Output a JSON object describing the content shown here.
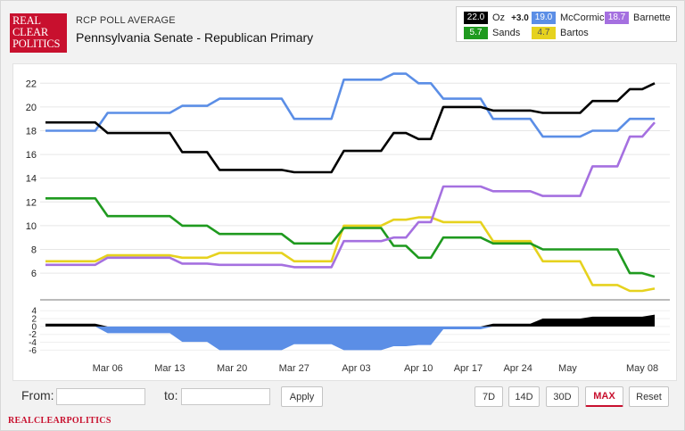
{
  "header": {
    "logo_lines": [
      "REAL",
      "CLEAR",
      "POLITICS"
    ],
    "kicker": "RCP POLL AVERAGE",
    "title": "Pennsylvania Senate - Republican Primary"
  },
  "legend": {
    "oz": {
      "value": "22.0",
      "name": "Oz",
      "spread": "+3.0",
      "color": "#000000"
    },
    "mccormick": {
      "value": "19.0",
      "name": "McCormick",
      "color": "#5b8ee6"
    },
    "barnette": {
      "value": "18.7",
      "name": "Barnette",
      "color": "#a570e0"
    },
    "sands": {
      "value": "5.7",
      "name": "Sands",
      "color": "#1f9a1f"
    },
    "bartos": {
      "value": "4.7",
      "name": "Bartos",
      "color": "#e6d21e"
    }
  },
  "controls": {
    "from_label": "From:",
    "to_label": "to:",
    "from_value": "",
    "to_value": "",
    "apply_label": "Apply",
    "ranges": [
      "7D",
      "14D",
      "30D",
      "MAX"
    ],
    "active_range": "MAX",
    "reset_label": "Reset"
  },
  "footer": {
    "brand": "REALCLEARPOLITICS"
  },
  "chart_data": {
    "type": "line",
    "title": "Pennsylvania Senate - Republican Primary",
    "xlabel": "",
    "ylabel": "",
    "x": [
      "Feb 28",
      "Mar 01",
      "Mar 03",
      "Mar 04",
      "Mar 05",
      "Mar 06",
      "Mar 08",
      "Mar 10",
      "Mar 12",
      "Mar 14",
      "Mar 15",
      "Mar 16",
      "Mar 17",
      "Mar 18",
      "Mar 19",
      "Mar 20",
      "Mar 22",
      "Mar 24",
      "Mar 26",
      "Mar 28",
      "Mar 29",
      "Mar 31",
      "Apr 02",
      "Apr 04",
      "Apr 05",
      "Apr 06",
      "Apr 07",
      "Apr 08",
      "Apr 09",
      "Apr 10",
      "Apr 11",
      "Apr 12",
      "Apr 13",
      "Apr 14",
      "Apr 16",
      "Apr 18",
      "Apr 20",
      "Apr 22",
      "Apr 24",
      "Apr 26",
      "Apr 28",
      "Apr 30",
      "May 02",
      "May 03",
      "May 04",
      "May 05",
      "May 06",
      "May 07",
      "May 08",
      "May 09"
    ],
    "ylim": [
      4.2,
      23.3
    ],
    "spread_ylim": [
      -7.5,
      4.5
    ],
    "x_ticks": [
      "Mar 06",
      "Mar 13",
      "Mar 20",
      "Mar 27",
      "Apr 03",
      "Apr 10",
      "Apr 17",
      "Apr 24",
      "May",
      "May 08"
    ],
    "y_ticks": [
      6,
      8,
      10,
      12,
      14,
      16,
      18,
      20,
      22
    ],
    "spread_ticks": [
      4,
      2,
      0,
      -2,
      -4,
      -6
    ],
    "series": [
      {
        "name": "Oz",
        "color": "#000000",
        "values": [
          18.7,
          18.7,
          18.7,
          18.7,
          18.7,
          17.8,
          17.8,
          17.8,
          17.8,
          17.8,
          17.8,
          16.2,
          16.2,
          16.2,
          14.7,
          14.7,
          14.7,
          14.7,
          14.7,
          14.7,
          14.5,
          14.5,
          14.5,
          14.5,
          16.3,
          16.3,
          16.3,
          16.3,
          17.8,
          17.8,
          17.3,
          17.3,
          20.0,
          20.0,
          20.0,
          20.0,
          19.7,
          19.7,
          19.7,
          19.7,
          19.5,
          19.5,
          19.5,
          19.5,
          20.5,
          20.5,
          20.5,
          21.5,
          21.5,
          22.0
        ]
      },
      {
        "name": "McCormick",
        "color": "#5b8ee6",
        "values": [
          18.0,
          18.0,
          18.0,
          18.0,
          18.0,
          19.5,
          19.5,
          19.5,
          19.5,
          19.5,
          19.5,
          20.1,
          20.1,
          20.1,
          20.7,
          20.7,
          20.7,
          20.7,
          20.7,
          20.7,
          19.0,
          19.0,
          19.0,
          19.0,
          22.3,
          22.3,
          22.3,
          22.3,
          22.8,
          22.8,
          22.0,
          22.0,
          20.7,
          20.7,
          20.7,
          20.7,
          19.0,
          19.0,
          19.0,
          19.0,
          17.5,
          17.5,
          17.5,
          17.5,
          18.0,
          18.0,
          18.0,
          19.0,
          19.0,
          19.0
        ]
      },
      {
        "name": "Barnette",
        "color": "#a570e0",
        "values": [
          6.7,
          6.7,
          6.7,
          6.7,
          6.7,
          7.3,
          7.3,
          7.3,
          7.3,
          7.3,
          7.3,
          6.8,
          6.8,
          6.8,
          6.7,
          6.7,
          6.7,
          6.7,
          6.7,
          6.7,
          6.5,
          6.5,
          6.5,
          6.5,
          8.7,
          8.7,
          8.7,
          8.7,
          9.0,
          9.0,
          10.3,
          10.3,
          13.3,
          13.3,
          13.3,
          13.3,
          12.9,
          12.9,
          12.9,
          12.9,
          12.5,
          12.5,
          12.5,
          12.5,
          15.0,
          15.0,
          15.0,
          17.5,
          17.5,
          18.7
        ]
      },
      {
        "name": "Sands",
        "color": "#1f9a1f",
        "values": [
          12.3,
          12.3,
          12.3,
          12.3,
          12.3,
          10.8,
          10.8,
          10.8,
          10.8,
          10.8,
          10.8,
          10.0,
          10.0,
          10.0,
          9.3,
          9.3,
          9.3,
          9.3,
          9.3,
          9.3,
          8.5,
          8.5,
          8.5,
          8.5,
          9.8,
          9.8,
          9.8,
          9.8,
          8.3,
          8.3,
          7.3,
          7.3,
          9.0,
          9.0,
          9.0,
          9.0,
          8.5,
          8.5,
          8.5,
          8.5,
          8.0,
          8.0,
          8.0,
          8.0,
          8.0,
          8.0,
          8.0,
          6.0,
          6.0,
          5.7
        ]
      },
      {
        "name": "Bartos",
        "color": "#e6d21e",
        "values": [
          7.0,
          7.0,
          7.0,
          7.0,
          7.0,
          7.5,
          7.5,
          7.5,
          7.5,
          7.5,
          7.5,
          7.3,
          7.3,
          7.3,
          7.7,
          7.7,
          7.7,
          7.7,
          7.7,
          7.7,
          7.0,
          7.0,
          7.0,
          7.0,
          10.0,
          10.0,
          10.0,
          10.0,
          10.5,
          10.5,
          10.7,
          10.7,
          10.3,
          10.3,
          10.3,
          10.3,
          8.7,
          8.7,
          8.7,
          8.7,
          7.0,
          7.0,
          7.0,
          7.0,
          5.0,
          5.0,
          5.0,
          4.5,
          4.5,
          4.7
        ]
      }
    ],
    "spread": {
      "name": "Oz vs McCormick spread",
      "positive_color": "#000000",
      "negative_color": "#5b8ee6",
      "values": [
        0.7,
        0.7,
        0.7,
        0.7,
        0.7,
        -1.7,
        -1.7,
        -1.7,
        -1.7,
        -1.7,
        -1.7,
        -3.9,
        -3.9,
        -3.9,
        -6.0,
        -6.0,
        -6.0,
        -6.0,
        -6.0,
        -6.0,
        -4.5,
        -4.5,
        -4.5,
        -4.5,
        -6.0,
        -6.0,
        -6.0,
        -6.0,
        -5.0,
        -5.0,
        -4.7,
        -4.7,
        -0.7,
        -0.7,
        -0.7,
        -0.7,
        0.7,
        0.7,
        0.7,
        0.7,
        2.0,
        2.0,
        2.0,
        2.0,
        2.5,
        2.5,
        2.5,
        2.5,
        2.5,
        3.0
      ]
    }
  }
}
